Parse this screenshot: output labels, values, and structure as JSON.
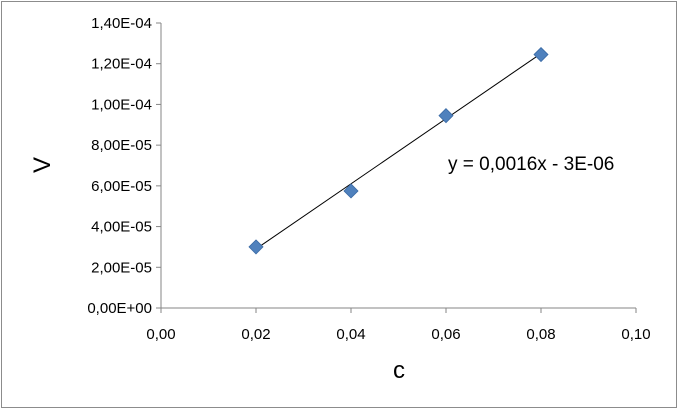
{
  "chart_data": {
    "type": "scatter",
    "title": "",
    "xlabel": "c",
    "ylabel": "V",
    "xlim": [
      0,
      0.1
    ],
    "ylim": [
      0,
      0.00014
    ],
    "x_ticks": [
      0,
      0.02,
      0.04,
      0.06,
      0.08,
      0.1
    ],
    "x_tick_labels": [
      "0,00",
      "0,02",
      "0,04",
      "0,06",
      "0,08",
      "0,10"
    ],
    "y_ticks": [
      0,
      2e-05,
      4e-05,
      6e-05,
      8e-05,
      0.0001,
      0.00012,
      0.00014
    ],
    "y_tick_labels": [
      "0,00E+00",
      "2,00E-05",
      "4,00E-05",
      "6,00E-05",
      "8,00E-05",
      "1,00E-04",
      "1,20E-04",
      "1,40E-04"
    ],
    "grid": false,
    "legend": "none",
    "series": [
      {
        "x": [
          0.02,
          0.04,
          0.06,
          0.08
        ],
        "y": [
          3e-05,
          5.75e-05,
          9.45e-05,
          0.0001245
        ],
        "marker": "diamond",
        "color": "#4f81bd"
      }
    ],
    "trendline": {
      "type": "linear",
      "slope": 0.0016,
      "intercept": -3e-06,
      "x_range": [
        0.02,
        0.08
      ],
      "color": "#000000",
      "equation_label": "y = 0,0016x - 3E-06"
    }
  }
}
